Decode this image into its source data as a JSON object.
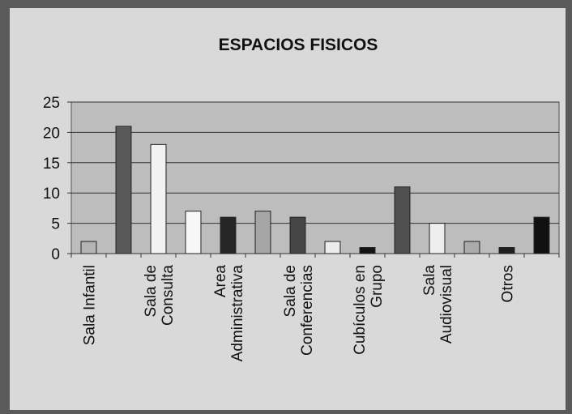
{
  "chart_data": {
    "type": "bar",
    "title": "ESPACIOS FISICOS",
    "categories": [
      "Sala Infantil",
      null,
      "Sala de\nConsulta",
      null,
      "Area\nAdministrativa",
      null,
      "Sala de\nConferencias",
      null,
      "Cubículos en\nGrupo",
      null,
      "Sala\nAudiovisual",
      null,
      "Otros",
      null
    ],
    "values": [
      2,
      21,
      18,
      7,
      6,
      7,
      6,
      2,
      1,
      11,
      5,
      2,
      1,
      6
    ],
    "colors": [
      "#b4b4b4",
      "#595959",
      "#f2f2f2",
      "#f7f7f7",
      "#262626",
      "#a6a6a6",
      "#454545",
      "#ececec",
      "#141414",
      "#505050",
      "#eeeeee",
      "#ababab",
      "#202020",
      "#111111"
    ],
    "ylim": [
      0,
      25
    ],
    "yticks": [
      0,
      5,
      10,
      15,
      20,
      25
    ],
    "grid": true
  }
}
